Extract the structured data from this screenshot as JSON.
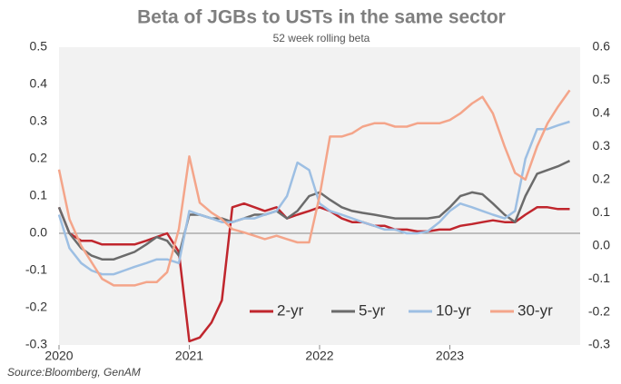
{
  "chart_data": {
    "type": "line",
    "title": "Beta of JGBs to USTs in the same sector",
    "subtitle": "52 week rolling beta",
    "source": "Source:Bloomberg, GenAM",
    "x": [
      2020,
      2020.08,
      2020.17,
      2020.25,
      2020.33,
      2020.42,
      2020.5,
      2020.58,
      2020.67,
      2020.75,
      2020.83,
      2020.92,
      2021,
      2021.08,
      2021.17,
      2021.25,
      2021.33,
      2021.42,
      2021.5,
      2021.58,
      2021.67,
      2021.75,
      2021.83,
      2021.92,
      2022,
      2022.08,
      2022.17,
      2022.25,
      2022.33,
      2022.42,
      2022.5,
      2022.58,
      2022.67,
      2022.75,
      2022.83,
      2022.92,
      2023,
      2023.08,
      2023.17,
      2023.25,
      2023.33,
      2023.42,
      2023.5,
      2023.58,
      2023.67,
      2023.75,
      2023.83,
      2023.92
    ],
    "xlim": [
      2020,
      2024
    ],
    "xticks": [
      2020,
      2021,
      2022,
      2023
    ],
    "ylim": [
      -0.3,
      0.5
    ],
    "yticks": [
      -0.3,
      -0.2,
      -0.1,
      {
        "value": 0,
        "label": "0.0"
      },
      0.1,
      0.2,
      0.3,
      0.4,
      0.5
    ],
    "y2lim": [
      -0.3,
      0.6
    ],
    "y2ticks": [
      -0.3,
      -0.2,
      -0.1,
      {
        "value": 0,
        "label": "0.0"
      },
      0.1,
      0.2,
      0.3,
      0.4,
      0.5,
      0.6
    ],
    "legend": "bottom-right",
    "series": [
      {
        "name": "2-yr",
        "color": "#c0262d",
        "values": [
          0.07,
          0.0,
          -0.02,
          -0.02,
          -0.03,
          -0.03,
          -0.03,
          -0.03,
          -0.02,
          -0.01,
          0.0,
          -0.05,
          -0.29,
          -0.28,
          -0.24,
          -0.18,
          0.07,
          0.08,
          0.07,
          0.06,
          0.07,
          0.04,
          0.05,
          0.06,
          0.07,
          0.06,
          0.04,
          0.03,
          0.03,
          0.02,
          0.02,
          0.01,
          0.01,
          0.005,
          0.005,
          0.01,
          0.01,
          0.02,
          0.025,
          0.03,
          0.035,
          0.03,
          0.03,
          0.05,
          0.07,
          0.07,
          0.065,
          0.065
        ]
      },
      {
        "name": "5-yr",
        "color": "#6b6b6b",
        "values": [
          0.07,
          0.0,
          -0.04,
          -0.06,
          -0.07,
          -0.07,
          -0.06,
          -0.05,
          -0.03,
          -0.01,
          -0.02,
          -0.06,
          0.05,
          0.05,
          0.04,
          0.04,
          0.03,
          0.04,
          0.05,
          0.05,
          0.06,
          0.04,
          0.06,
          0.1,
          0.11,
          0.09,
          0.07,
          0.06,
          0.055,
          0.05,
          0.045,
          0.04,
          0.04,
          0.04,
          0.04,
          0.045,
          0.07,
          0.1,
          0.11,
          0.105,
          0.08,
          0.05,
          0.03,
          0.1,
          0.16,
          0.17,
          0.18,
          0.195
        ]
      },
      {
        "name": "10-yr",
        "color": "#9dbfe3",
        "values": [
          0.05,
          -0.04,
          -0.08,
          -0.1,
          -0.11,
          -0.11,
          -0.1,
          -0.09,
          -0.08,
          -0.07,
          -0.07,
          -0.08,
          0.06,
          0.05,
          0.04,
          0.03,
          0.03,
          0.04,
          0.04,
          0.05,
          0.06,
          0.1,
          0.19,
          0.17,
          0.08,
          0.06,
          0.05,
          0.04,
          0.03,
          0.02,
          0.01,
          0.01,
          0.0,
          0.0,
          0.005,
          0.03,
          0.06,
          0.08,
          0.07,
          0.06,
          0.05,
          0.04,
          0.06,
          0.2,
          0.28,
          0.28,
          0.29,
          0.3
        ]
      },
      {
        "name": "30-yr",
        "color": "#f4a58a",
        "axis": "y2",
        "values": [
          0.23,
          0.08,
          0.0,
          -0.05,
          -0.1,
          -0.12,
          -0.12,
          -0.12,
          -0.11,
          -0.11,
          -0.08,
          0.05,
          0.27,
          0.13,
          0.1,
          0.08,
          0.05,
          0.04,
          0.03,
          0.02,
          0.03,
          0.02,
          0.01,
          0.01,
          0.15,
          0.33,
          0.33,
          0.34,
          0.36,
          0.37,
          0.37,
          0.36,
          0.36,
          0.37,
          0.37,
          0.37,
          0.38,
          0.4,
          0.43,
          0.45,
          0.4,
          0.3,
          0.22,
          0.2,
          0.3,
          0.37,
          0.42,
          0.47
        ]
      }
    ]
  }
}
